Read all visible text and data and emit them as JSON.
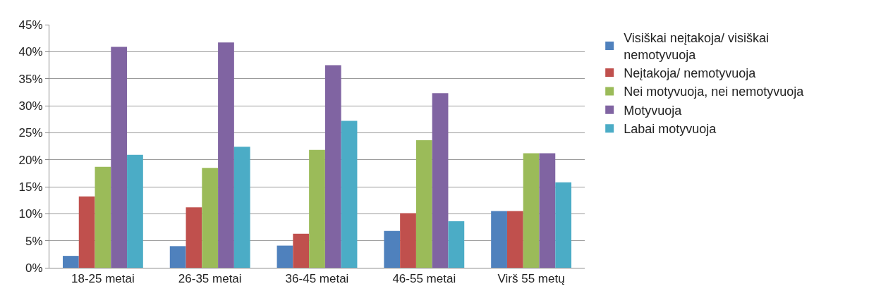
{
  "chart_data": {
    "type": "bar",
    "categories": [
      "18-25 metai",
      "26-35 metai",
      "36-45 metai",
      "46-55 metai",
      "Virš 55 metų"
    ],
    "series": [
      {
        "name": "Visiškai neįtakoja/ visiškai nemotyvuoja",
        "color": "#4f81bd",
        "values": [
          2.2,
          4.0,
          4.1,
          6.8,
          10.5
        ]
      },
      {
        "name": "Neįtakoja/ nemotyvuoja",
        "color": "#c0504d",
        "values": [
          13.2,
          11.2,
          6.3,
          10.1,
          10.5
        ]
      },
      {
        "name": "Nei motyvuoja, nei nemotyvuoja",
        "color": "#9bbb59",
        "values": [
          18.7,
          18.5,
          21.8,
          23.6,
          21.2
        ]
      },
      {
        "name": "Motyvuoja",
        "color": "#8064a2",
        "values": [
          40.9,
          41.7,
          37.5,
          32.3,
          21.2
        ]
      },
      {
        "name": "Labai motyvuoja",
        "color": "#4bacc6",
        "values": [
          20.9,
          22.4,
          27.2,
          8.6,
          15.8
        ]
      }
    ],
    "ylim": [
      0,
      45
    ],
    "yticks": [
      {
        "value": 0,
        "label": "0%"
      },
      {
        "value": 5,
        "label": "5%"
      },
      {
        "value": 10,
        "label": "10%"
      },
      {
        "value": 15,
        "label": "15%"
      },
      {
        "value": 20,
        "label": "20%"
      },
      {
        "value": 25,
        "label": "25%"
      },
      {
        "value": 30,
        "label": "30%"
      },
      {
        "value": 35,
        "label": "35%"
      },
      {
        "value": 40,
        "label": "40%"
      },
      {
        "value": 45,
        "label": "45%"
      }
    ],
    "grid": "y",
    "legend": "right"
  }
}
